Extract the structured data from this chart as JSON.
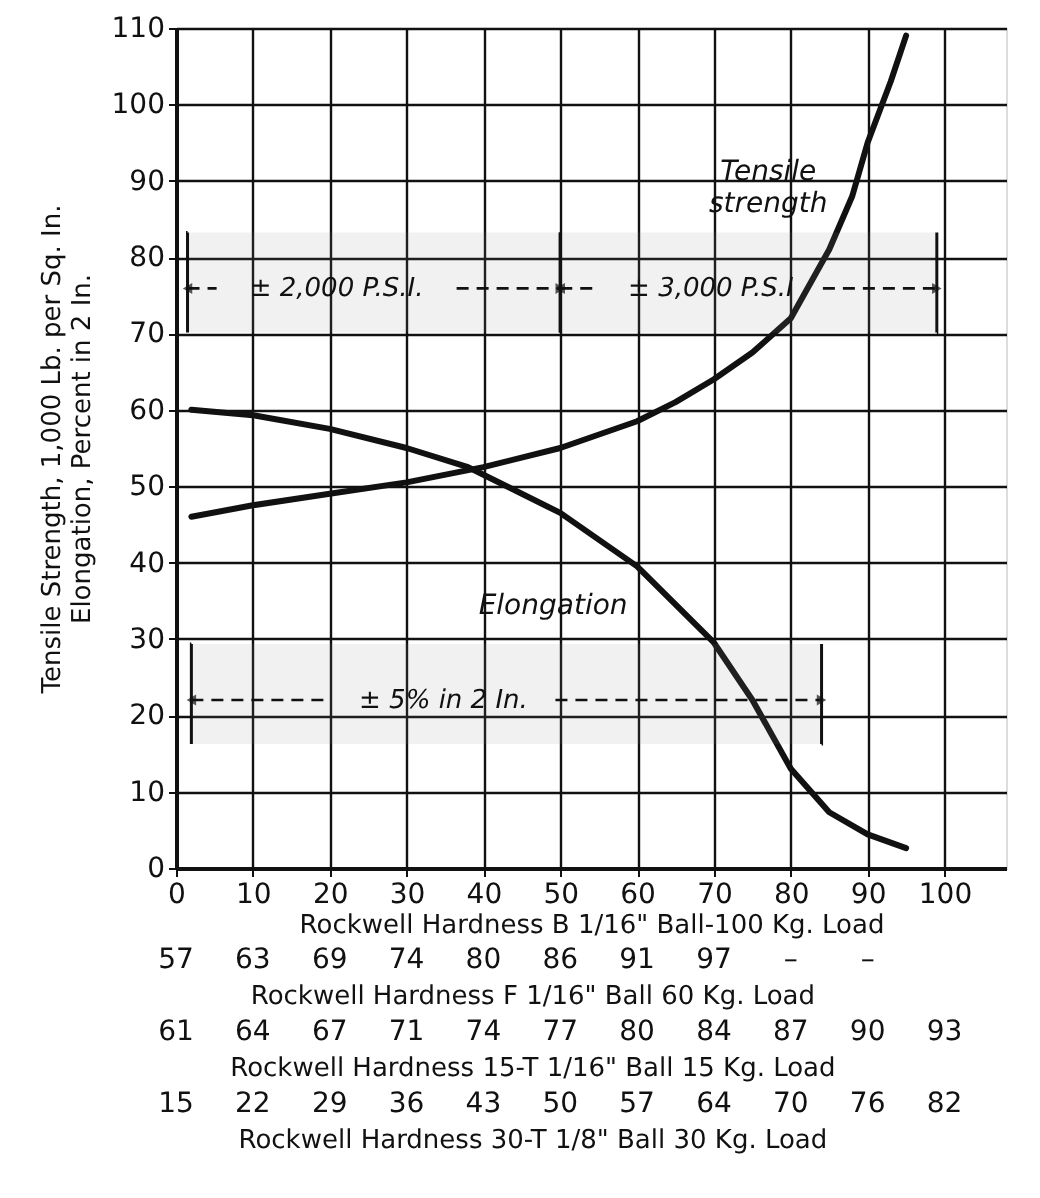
{
  "chart_data": {
    "type": "line",
    "xlabel": "Rockwell Hardness B 1/16\" Ball-100 Kg. Load",
    "ylabel": "Tensile Strength, 1,000 Lb. per Sq. In.\nElongation, Percent in 2 In.",
    "series": [
      {
        "name": "Tensile strength",
        "color": "#111111",
        "x": [
          2,
          10,
          20,
          30,
          40,
          50,
          60,
          65,
          70,
          75,
          80,
          85,
          88,
          90,
          93,
          95
        ],
        "values": [
          46,
          47.5,
          49,
          50.5,
          52.5,
          55,
          58.5,
          61,
          64,
          67.5,
          72,
          81,
          88,
          95,
          103,
          109
        ]
      },
      {
        "name": "Elongation",
        "color": "#111111",
        "x": [
          2,
          10,
          20,
          30,
          38,
          40,
          50,
          60,
          70,
          75,
          80,
          85,
          90,
          95
        ],
        "values": [
          60,
          59.3,
          57.5,
          55,
          52.5,
          51.5,
          46.5,
          39.5,
          29.5,
          22,
          13,
          7.3,
          4.4,
          2.6
        ]
      }
    ],
    "bands": [
      {
        "axis": "x",
        "from": 1.5,
        "to": 50,
        "label": "± 2,000 P.S.I."
      },
      {
        "axis": "x",
        "from": 50,
        "to": 99,
        "label": "± 3,000 P.S.I"
      },
      {
        "axis": "x",
        "from": 2,
        "to": 84,
        "label": "± 5% in 2 In."
      }
    ],
    "annotations": [
      "57 63 69 74 80 86 91 97 – –",
      "Rockwell Hardness F 1/16\" Ball 60 Kg. Load",
      "61 64 67 71 74 77 80 84 87 90 93",
      "Rockwell Hardness 15-T 1/16\" Ball 15 Kg. Load",
      "15 22 29 36 43 50 57 64 70 76 82",
      "Rockwell Hardness 30-T 1/8\" Ball 30 Kg. Load"
    ],
    "xlim": [
      0,
      108
    ],
    "xticks": [
      0,
      10,
      20,
      30,
      40,
      50,
      60,
      70,
      80,
      90,
      100
    ],
    "ylim": [
      0,
      110
    ],
    "yticks": [
      0,
      10,
      20,
      30,
      40,
      50,
      60,
      70,
      80,
      90,
      100,
      110
    ],
    "grid": true,
    "marker": "none",
    "line_style": "solid"
  }
}
